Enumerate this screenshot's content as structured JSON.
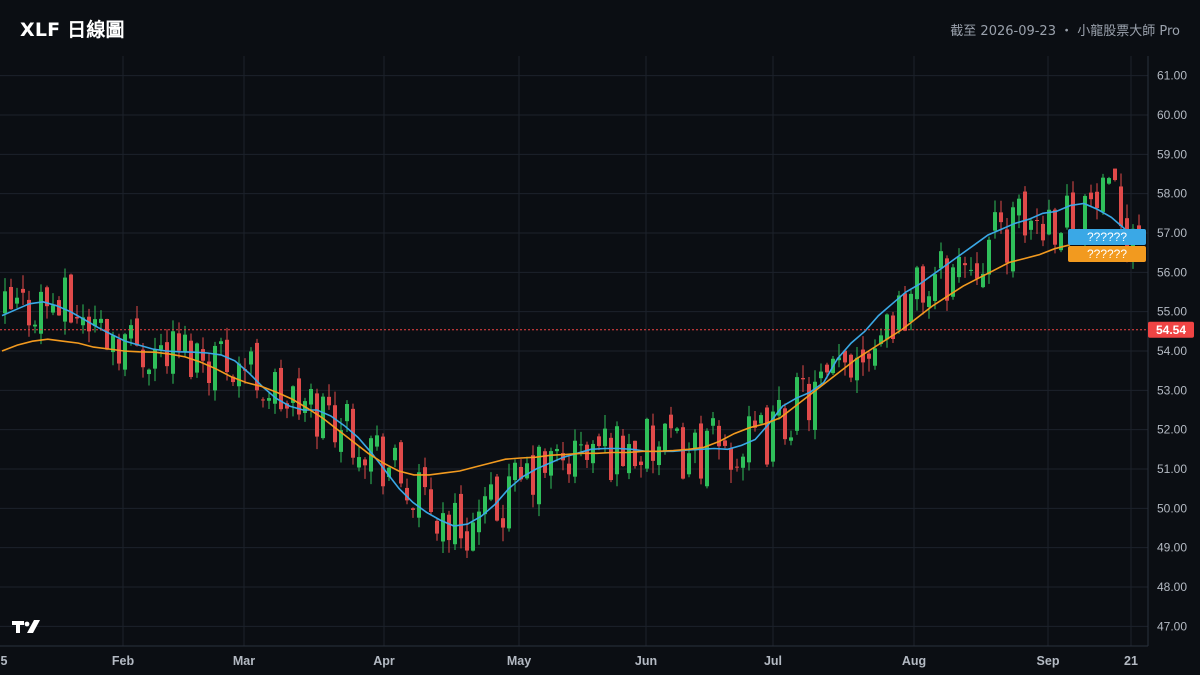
{
  "header": {
    "title": "XLF 日線圖",
    "subtitle": "截至 2026-09-23 ・ 小龍股票大師 Pro"
  },
  "colors": {
    "background": "#0b0e13",
    "up": "#2fbf5a",
    "down": "#e04a4a",
    "ma_short": "#3aa8e6",
    "ma_long": "#f29a1f",
    "last_price_tag": "#f04444"
  },
  "chart_data": {
    "type": "candlestick",
    "title": "XLF 日線圖",
    "ylim": [
      46.5,
      61.5
    ],
    "y_ticks": [
      "47.00",
      "48.00",
      "49.00",
      "50.00",
      "51.00",
      "52.00",
      "53.00",
      "54.00",
      "55.00",
      "56.00",
      "57.00",
      "58.00",
      "59.00",
      "60.00",
      "61.00"
    ],
    "x_ticks": [
      "Feb",
      "Mar",
      "Apr",
      "May",
      "Jun",
      "Jul",
      "Aug",
      "Sep",
      "21"
    ],
    "x_tick_left_partial": "5",
    "last_price": "54.54",
    "ma_tags": [
      "??????",
      "??????"
    ],
    "grid": true,
    "logo_icon": "tradingview-logo",
    "series": [
      {
        "name": "ma_short",
        "values": [
          54.9,
          55.05,
          55.2,
          55.25,
          55.15,
          55.0,
          54.8,
          54.6,
          54.42,
          54.25,
          54.15,
          54.05,
          54.0,
          53.98,
          53.97,
          53.95,
          53.9,
          53.75,
          53.45,
          53.1,
          52.8,
          52.6,
          52.5,
          52.5,
          52.35,
          52.1,
          51.8,
          51.4,
          50.95,
          50.5,
          50.15,
          49.9,
          49.7,
          49.55,
          49.6,
          49.8,
          50.1,
          50.5,
          50.8,
          51.0,
          51.15,
          51.3,
          51.4,
          51.5,
          51.52,
          51.52,
          51.5,
          51.45,
          51.45,
          51.45,
          51.48,
          51.5,
          51.52,
          51.5,
          51.6,
          51.75,
          52.15,
          52.6,
          52.8,
          52.95,
          53.2,
          53.8,
          54.2,
          54.5,
          54.9,
          55.2,
          55.5,
          55.7,
          55.95,
          56.2,
          56.45,
          56.7,
          56.95,
          57.1,
          57.25,
          57.35,
          57.5,
          57.55,
          57.7,
          57.75,
          57.6,
          57.4,
          57.1
        ]
      },
      {
        "name": "ma_long",
        "values": [
          54.0,
          54.15,
          54.25,
          54.3,
          54.25,
          54.2,
          54.1,
          54.05,
          54.0,
          53.98,
          53.97,
          53.92,
          53.85,
          53.72,
          53.55,
          53.35,
          53.2,
          53.1,
          52.95,
          52.78,
          52.55,
          52.3,
          52.0,
          51.7,
          51.4,
          51.15,
          50.95,
          50.85,
          50.85,
          50.9,
          50.95,
          51.05,
          51.15,
          51.25,
          51.28,
          51.3,
          51.35,
          51.37,
          51.4,
          51.4,
          51.42,
          51.42,
          51.45,
          51.45,
          51.47,
          51.5,
          51.55,
          51.7,
          51.9,
          52.05,
          52.15,
          52.3,
          52.6,
          52.9,
          53.2,
          53.5,
          53.8,
          54.05,
          54.3,
          54.55,
          54.85,
          55.15,
          55.4,
          55.65,
          55.85,
          56.05,
          56.25,
          56.35,
          56.45,
          56.6,
          56.7
        ]
      }
    ]
  }
}
